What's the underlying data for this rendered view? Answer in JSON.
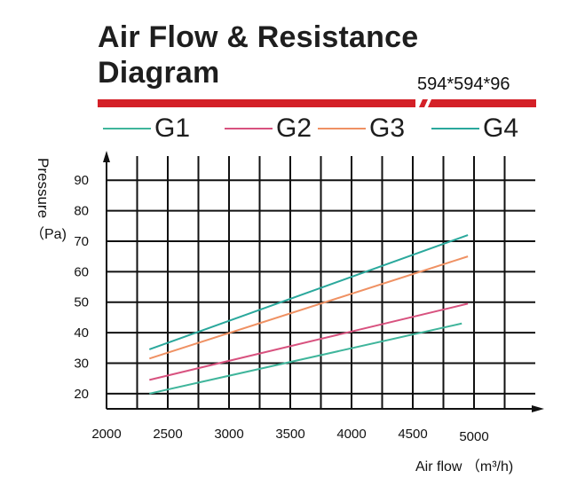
{
  "title_line1": "Air Flow & Resistance",
  "title_line2": "Diagram",
  "size_label": "594*594*96",
  "colors": {
    "accent_bar": "#d42027",
    "grid": "#111111"
  },
  "chart_data": {
    "type": "line",
    "title": "Air Flow & Resistance Diagram",
    "xlabel": "Air flow （m³/h)",
    "ylabel": "Pressure",
    "ylabel_unit": "（Pa)",
    "xlim": [
      2000,
      5500
    ],
    "ylim": [
      15,
      95
    ],
    "x_ticks": [
      2000,
      2500,
      3000,
      3500,
      4000,
      4500,
      5000
    ],
    "y_ticks": [
      20,
      30,
      40,
      50,
      60,
      70,
      80,
      90
    ],
    "grid": true,
    "legend_position": "top",
    "series": [
      {
        "name": "G1",
        "color": "#3fb59b",
        "x": [
          2350,
          4900
        ],
        "y": [
          20,
          43
        ]
      },
      {
        "name": "G2",
        "color": "#d8527f",
        "x": [
          2350,
          4950
        ],
        "y": [
          24.5,
          49.5
        ]
      },
      {
        "name": "G3",
        "color": "#ef9163",
        "x": [
          2350,
          4950
        ],
        "y": [
          31.5,
          65
        ]
      },
      {
        "name": "G4",
        "color": "#2aa89c",
        "x": [
          2350,
          4950
        ],
        "y": [
          34.5,
          72
        ]
      }
    ]
  }
}
